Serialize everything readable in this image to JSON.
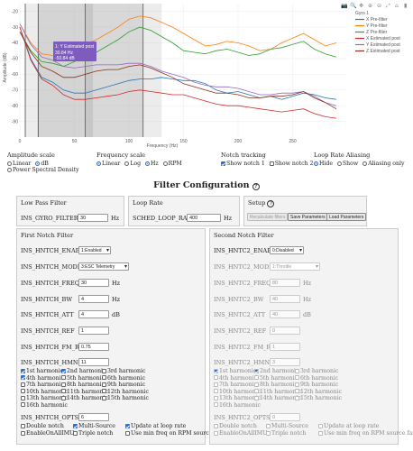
{
  "chart_data": {
    "type": "line",
    "title": "",
    "xlabel": "Frequency (Hz)",
    "ylabel": "Amplitude (dB)",
    "xlim": [
      0,
      300
    ],
    "ylim": [
      -100,
      -15
    ],
    "xticks": [
      "0",
      "50",
      "100",
      "150",
      "200",
      "250"
    ],
    "yticks": [
      "-20",
      "-30",
      "-40",
      "-50",
      "-60",
      "-70",
      "-80",
      "-90"
    ],
    "legend_title": "Gyro 1",
    "legend_position": "top-right",
    "tooltip": {
      "title": "1: Y Estimated post",
      "lines": [
        "30.84 Hz",
        "-50.84 dB"
      ]
    },
    "shaded_regions": [
      [
        4,
        130
      ],
      [
        16,
        67
      ],
      [
        60,
        113
      ]
    ],
    "vertical_lines": [
      5,
      17,
      60,
      113
    ],
    "x": [
      0,
      10,
      20,
      30,
      40,
      50,
      60,
      70,
      80,
      90,
      100,
      110,
      120,
      130,
      140,
      150,
      160,
      170,
      180,
      190,
      200,
      210,
      220,
      230,
      240,
      250,
      260,
      270,
      280,
      290
    ],
    "series": [
      {
        "name": "X Pre-filter",
        "color": "#1f77b4",
        "values": [
          -30,
          -50,
          -62,
          -65,
          -70,
          -72,
          -72,
          -70,
          -68,
          -66,
          -64,
          -63,
          -63,
          -62,
          -63,
          -64,
          -64,
          -66,
          -70,
          -72,
          -71,
          -73,
          -75,
          -74,
          -76,
          -74,
          -72,
          -73,
          -75,
          -76
        ]
      },
      {
        "name": "Y Pre-filter",
        "color": "#ff7f0e",
        "values": [
          -28,
          -40,
          -47,
          -48,
          -50,
          -46,
          -41,
          -38,
          -34,
          -30,
          -25,
          -23,
          -24,
          -27,
          -30,
          -34,
          -38,
          -42,
          -41,
          -39,
          -40,
          -42,
          -45,
          -44,
          -40,
          -37,
          -34,
          -38,
          -42,
          -40
        ]
      },
      {
        "name": "Z Pre-filter",
        "color": "#2ca02c",
        "values": [
          -33,
          -45,
          -52,
          -53,
          -55,
          -52,
          -48,
          -46,
          -42,
          -38,
          -33,
          -30,
          -32,
          -36,
          -40,
          -45,
          -46,
          -47,
          -45,
          -44,
          -46,
          -48,
          -47,
          -44,
          -43,
          -41,
          -39,
          -44,
          -47,
          -49
        ]
      },
      {
        "name": "X Estimated post",
        "color": "#d62728",
        "values": [
          -30,
          -51,
          -63,
          -67,
          -73,
          -76,
          -76,
          -75,
          -74,
          -73,
          -71,
          -70,
          -71,
          -72,
          -73,
          -73,
          -75,
          -77,
          -79,
          -80,
          -80,
          -81,
          -82,
          -83,
          -84,
          -83,
          -82,
          -85,
          -87,
          -88
        ]
      },
      {
        "name": "Y Estimated post",
        "color": "#9467bd",
        "values": [
          -28,
          -41,
          -49,
          -51,
          -55,
          -56,
          -55,
          -54,
          -54,
          -54,
          -53,
          -53,
          -55,
          -58,
          -60,
          -62,
          -65,
          -67,
          -68,
          -68,
          -69,
          -71,
          -73,
          -73,
          -72,
          -72,
          -71,
          -74,
          -78,
          -80
        ]
      },
      {
        "name": "Z Estimated post",
        "color": "#8c2d19",
        "values": [
          -33,
          -46,
          -55,
          -58,
          -62,
          -62,
          -60,
          -58,
          -57,
          -57,
          -55,
          -54,
          -56,
          -59,
          -62,
          -66,
          -68,
          -70,
          -72,
          -72,
          -73,
          -75,
          -75,
          -74,
          -74,
          -73,
          -71,
          -75,
          -78,
          -82
        ]
      }
    ]
  },
  "controls": {
    "amplitude": {
      "title": "Amplitude scale",
      "options": [
        "Linear",
        "dB",
        "Power Spectral Density"
      ],
      "selected": "dB"
    },
    "frequency": {
      "title": "Frequency scale",
      "options": [
        "Linear",
        "Log",
        "Hz",
        "RPM"
      ],
      "selected": [
        "Linear",
        "Hz"
      ]
    },
    "notch": {
      "title": "Notch tracking",
      "options": [
        "Show notch 1",
        "Show notch 2"
      ],
      "checked": [
        "Show notch 1"
      ]
    },
    "aliasing": {
      "title": "Loop Rate Aliasing",
      "options": [
        "Hide",
        "Show",
        "Aliasing only"
      ],
      "selected": "Hide"
    }
  },
  "filter_config": {
    "heading": "Filter Configuration",
    "help_icon": "?",
    "low_pass": {
      "title": "Low Pass Filter",
      "param": "INS_GYRO_FILTER",
      "value": "30",
      "unit": "Hz"
    },
    "loop_rate": {
      "title": "Loop Rate",
      "param": "SCHED_LOOP_RATE",
      "value": "400",
      "unit": "Hz"
    },
    "setup": {
      "title": "Setup",
      "buttons": [
        "Recalculate filters",
        "Save Parameters",
        "Load Parameters"
      ]
    },
    "first_notch": {
      "title": "First Notch Filter",
      "enable": {
        "param": "INS_HNTCH_ENABLE",
        "value": "1:Enabled"
      },
      "mode": {
        "param": "INS_HNTCH_MODE",
        "value": "3:ESC Telemetry"
      },
      "freq": {
        "param": "INS_HNTCH_FREQ",
        "value": "30",
        "unit": "Hz"
      },
      "bw": {
        "param": "INS_HNTCH_BW",
        "value": "4",
        "unit": "Hz"
      },
      "att": {
        "param": "INS_HNTCH_ATT",
        "value": "4",
        "unit": "dB"
      },
      "ref": {
        "param": "INS_HNTCH_REF",
        "value": "1"
      },
      "fm_rat": {
        "param": "INS_HNTCH_FM_RAT",
        "value": "0.75"
      },
      "hmncs": {
        "param": "INS_HNTCH_HMNCS",
        "value": "11"
      },
      "opts": {
        "param": "INS_HNTCH_OPTS",
        "value": "6"
      }
    },
    "second_notch": {
      "title": "Second Notch Filter",
      "enable": {
        "param": "INS_HNTC2_ENABLE",
        "value": "0:Disabled"
      },
      "mode": {
        "param": "INS_HNTC2_MODE",
        "value": "1:Throttle"
      },
      "freq": {
        "param": "INS_HNTC2_FREQ",
        "value": "80",
        "unit": "Hz"
      },
      "bw": {
        "param": "INS_HNTC2_BW",
        "value": "40",
        "unit": "Hz"
      },
      "att": {
        "param": "INS_HNTC2_ATT",
        "value": "40",
        "unit": "dB"
      },
      "ref": {
        "param": "INS_HNTC2_REF",
        "value": "0"
      },
      "fm_rat": {
        "param": "INS_HNTC2_FM_RAT",
        "value": "1"
      },
      "hmncs": {
        "param": "INS_HNTC2_HMNCS",
        "value": "3"
      },
      "opts": {
        "param": "INS_HNTC2_OPTS",
        "value": "0"
      }
    },
    "harmonics": [
      "1st harmonic",
      "2nd harmonic",
      "3rd harmonic",
      "4th harmonic",
      "5th harmonic",
      "6th harmonic",
      "7th harmonic",
      "8th harmonic",
      "9th harmonic",
      "10th harmonic",
      "11th harmonic",
      "12th harmonic",
      "13th harmonic",
      "14th harmonic",
      "15th harmonic",
      "16th harmonic"
    ],
    "first_harmonics_checked": [
      "1st harmonic",
      "2nd harmonic",
      "4th harmonic"
    ],
    "second_harmonics_checked": [
      "1st harmonic",
      "2nd harmonic"
    ],
    "opts_options": [
      "Double notch",
      "Multi-Source",
      "Update at loop rate",
      "EnableOnAllIMUs",
      "Triple notch",
      "Use min freq on RPM source failure"
    ],
    "first_opts_checked": [
      "Multi-Source",
      "Update at loop rate"
    ],
    "second_opts_checked": []
  }
}
